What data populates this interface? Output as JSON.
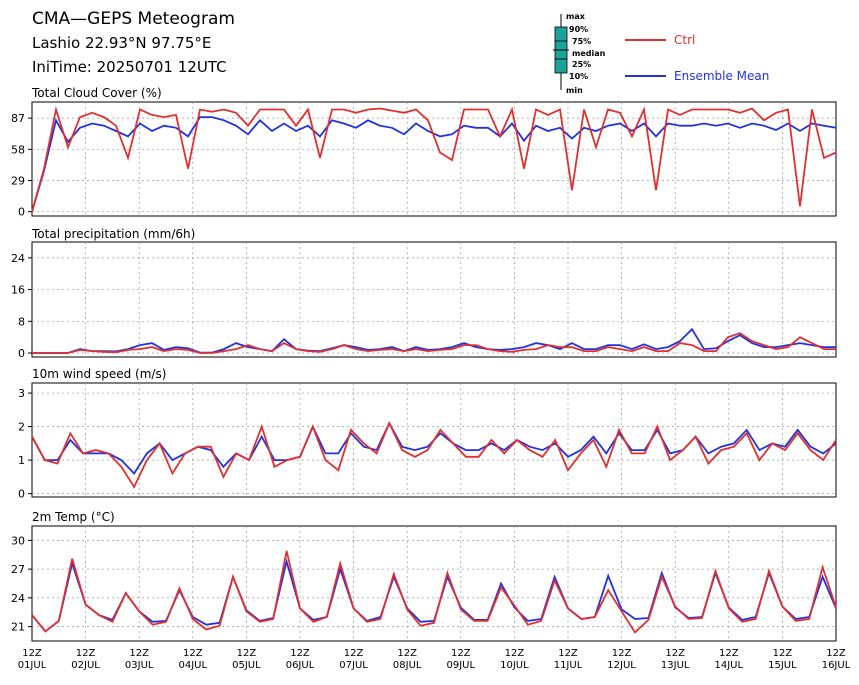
{
  "header": {
    "title": "CMA—GEPS Meteogram",
    "location": "Lashio 22.93°N 97.75°E",
    "init_time": "IniTime: 20250701 12UTC"
  },
  "legend": {
    "box_labels": [
      "max",
      "90%",
      "75%",
      "median",
      "25%",
      "10%",
      "min"
    ],
    "ctrl_label": "Ctrl",
    "mean_label": "Ensemble Mean",
    "ctrl_color": "#e03030",
    "mean_color": "#2233dd",
    "box_color": "#1aa39a"
  },
  "chart_data": {
    "type": "line",
    "x_start": "2025-07-01 12Z",
    "x_step_hours": 6,
    "date_labels": [
      "01JUL",
      "02JUL",
      "03JUL",
      "04JUL",
      "05JUL",
      "06JUL",
      "07JUL",
      "08JUL",
      "09JUL",
      "10JUL",
      "11JUL",
      "12JUL",
      "13JUL",
      "14JUL",
      "15JUL",
      "16JUL"
    ],
    "hour_label": "12Z",
    "panels": [
      {
        "title": "Total Cloud Cover (%)",
        "ylim": [
          -4,
          102
        ],
        "yticks": [
          0,
          29,
          58,
          87
        ],
        "series": [
          {
            "name": "Ctrl",
            "values": [
              0,
              40,
              95,
              60,
              88,
              92,
              88,
              80,
              50,
              95,
              90,
              88,
              90,
              40,
              95,
              93,
              95,
              92,
              80,
              95,
              95,
              95,
              80,
              95,
              50,
              95,
              95,
              92,
              95,
              96,
              94,
              92,
              95,
              85,
              55,
              48,
              95,
              95,
              95,
              70,
              95,
              40,
              95,
              90,
              95,
              20,
              95,
              60,
              95,
              92,
              70,
              95,
              20,
              95,
              90,
              95,
              95,
              95,
              95,
              92,
              96,
              85,
              92,
              95,
              5,
              95,
              50,
              55
            ]
          },
          {
            "name": "Ensemble Mean",
            "values": [
              0,
              38,
              85,
              65,
              78,
              82,
              80,
              75,
              70,
              82,
              75,
              80,
              78,
              70,
              88,
              88,
              85,
              80,
              72,
              85,
              75,
              82,
              75,
              80,
              70,
              85,
              82,
              78,
              85,
              80,
              78,
              72,
              82,
              75,
              70,
              72,
              80,
              78,
              78,
              70,
              82,
              66,
              80,
              75,
              78,
              68,
              78,
              75,
              80,
              82,
              75,
              82,
              70,
              82,
              80,
              80,
              82,
              80,
              82,
              78,
              82,
              80,
              76,
              82,
              75,
              82,
              80,
              78
            ]
          }
        ]
      },
      {
        "title": "Total precipitation (mm/6h)",
        "ylim": [
          -1,
          28
        ],
        "yticks": [
          0,
          8,
          16,
          24
        ],
        "series": [
          {
            "name": "Ctrl",
            "values": [
              0,
              0,
              0,
              0,
              0.8,
              0.5,
              0.3,
              0.2,
              0.8,
              1,
              1.5,
              0.5,
              1,
              0.8,
              0,
              0,
              0.5,
              1,
              2,
              1,
              0.5,
              2.5,
              1,
              0.5,
              0.3,
              1,
              2,
              1,
              0.5,
              0.8,
              1,
              0.5,
              1,
              0.5,
              0.8,
              1,
              2,
              2,
              1,
              0.5,
              0.3,
              0.8,
              1,
              2,
              1.5,
              1.5,
              0.5,
              0.5,
              1.5,
              1,
              0.5,
              1.5,
              0.5,
              0.5,
              2.5,
              2,
              0.5,
              0.5,
              4,
              5,
              3,
              2,
              1,
              1.5,
              4,
              2.5,
              1,
              1
            ]
          },
          {
            "name": "Ensemble Mean",
            "values": [
              0,
              0,
              0,
              0,
              1,
              0.5,
              0.5,
              0.4,
              1,
              2,
              2.5,
              0.8,
              1.5,
              1.2,
              0.1,
              0.1,
              1,
              2.5,
              1.5,
              1,
              0.5,
              3.5,
              1,
              0.6,
              0.5,
              1.2,
              2,
              1.5,
              0.8,
              1,
              1.5,
              0.5,
              1.5,
              0.8,
              1,
              1.5,
              2.5,
              1.5,
              1,
              0.8,
              1,
              1.5,
              2.5,
              2,
              1,
              2.5,
              1,
              1,
              2,
              2,
              1,
              2.2,
              1,
              1.5,
              3,
              6,
              1,
              1.2,
              3,
              4.5,
              2.5,
              1.5,
              1.5,
              2,
              2.5,
              2,
              1.5,
              1.5
            ]
          }
        ]
      },
      {
        "title": "10m wind speed (m/s)",
        "ylim": [
          -0.1,
          3.3
        ],
        "yticks": [
          0,
          1,
          2,
          3
        ],
        "series": [
          {
            "name": "Ctrl",
            "values": [
              1.7,
              1.0,
              0.9,
              1.8,
              1.2,
              1.3,
              1.2,
              0.8,
              0.2,
              1.0,
              1.5,
              0.6,
              1.2,
              1.4,
              1.4,
              0.5,
              1.2,
              1.0,
              2.0,
              0.8,
              1.0,
              1.1,
              2.0,
              1.0,
              0.7,
              1.9,
              1.5,
              1.2,
              2.1,
              1.3,
              1.1,
              1.3,
              1.9,
              1.5,
              1.1,
              1.1,
              1.6,
              1.2,
              1.6,
              1.3,
              1.1,
              1.6,
              0.7,
              1.2,
              1.6,
              0.8,
              1.9,
              1.2,
              1.2,
              2.0,
              1.0,
              1.3,
              1.7,
              0.9,
              1.3,
              1.4,
              1.8,
              1.0,
              1.5,
              1.3,
              1.8,
              1.3,
              1.0,
              1.6
            ]
          },
          {
            "name": "Ensemble Mean",
            "values": [
              1.7,
              1.0,
              1.0,
              1.6,
              1.2,
              1.2,
              1.2,
              1.0,
              0.6,
              1.2,
              1.5,
              1.0,
              1.2,
              1.4,
              1.3,
              0.8,
              1.2,
              1.0,
              1.7,
              1.0,
              1.0,
              1.1,
              2.0,
              1.2,
              1.2,
              1.8,
              1.4,
              1.3,
              2.1,
              1.4,
              1.3,
              1.4,
              1.8,
              1.5,
              1.3,
              1.3,
              1.5,
              1.3,
              1.6,
              1.4,
              1.3,
              1.5,
              1.1,
              1.3,
              1.7,
              1.2,
              1.8,
              1.3,
              1.3,
              1.9,
              1.2,
              1.3,
              1.7,
              1.2,
              1.4,
              1.5,
              1.9,
              1.3,
              1.5,
              1.4,
              1.9,
              1.4,
              1.2,
              1.5
            ]
          }
        ]
      },
      {
        "title": "2m Temp (°C)",
        "ylim": [
          19.5,
          31.5
        ],
        "yticks": [
          21,
          24,
          27,
          30
        ],
        "series": [
          {
            "name": "Ctrl",
            "values": [
              22.2,
              20.5,
              21.6,
              28.1,
              23.3,
              22.2,
              21.5,
              24.5,
              22.6,
              21.2,
              21.5,
              25,
              21.8,
              20.7,
              21.1,
              26.2,
              22.6,
              21.5,
              21.8,
              28.9,
              22.9,
              21.5,
              22.0,
              27.6,
              22.9,
              21.5,
              21.8,
              26.5,
              22.8,
              21.1,
              21.4,
              26.6,
              22.8,
              21.6,
              21.6,
              25.1,
              23.2,
              21.2,
              21.6,
              25.8,
              22.9,
              21.8,
              22.0,
              24.8,
              22.6,
              20.4,
              21.7,
              26.2,
              23.1,
              21.8,
              21.9,
              26.8,
              22.9,
              21.5,
              21.8,
              26.8,
              23.1,
              21.6,
              21.8,
              27.2,
              23.0
            ]
          },
          {
            "name": "Ensemble Mean",
            "values": [
              22.2,
              20.5,
              21.6,
              27.6,
              23.3,
              22.2,
              21.7,
              24.5,
              22.6,
              21.5,
              21.6,
              24.8,
              22.0,
              21.2,
              21.4,
              26.2,
              22.7,
              21.6,
              21.9,
              27.8,
              22.9,
              21.7,
              22.0,
              27.0,
              22.9,
              21.6,
              22.0,
              26.2,
              22.9,
              21.5,
              21.6,
              26.2,
              23.0,
              21.7,
              21.7,
              25.5,
              23.0,
              21.6,
              21.8,
              26.2,
              22.9,
              21.8,
              22.0,
              26.3,
              22.8,
              21.8,
              21.9,
              26.6,
              23.0,
              21.9,
              22.0,
              26.6,
              23.0,
              21.7,
              22.0,
              26.6,
              23.1,
              21.8,
              22.0,
              26.2,
              22.9
            ]
          }
        ]
      }
    ]
  }
}
